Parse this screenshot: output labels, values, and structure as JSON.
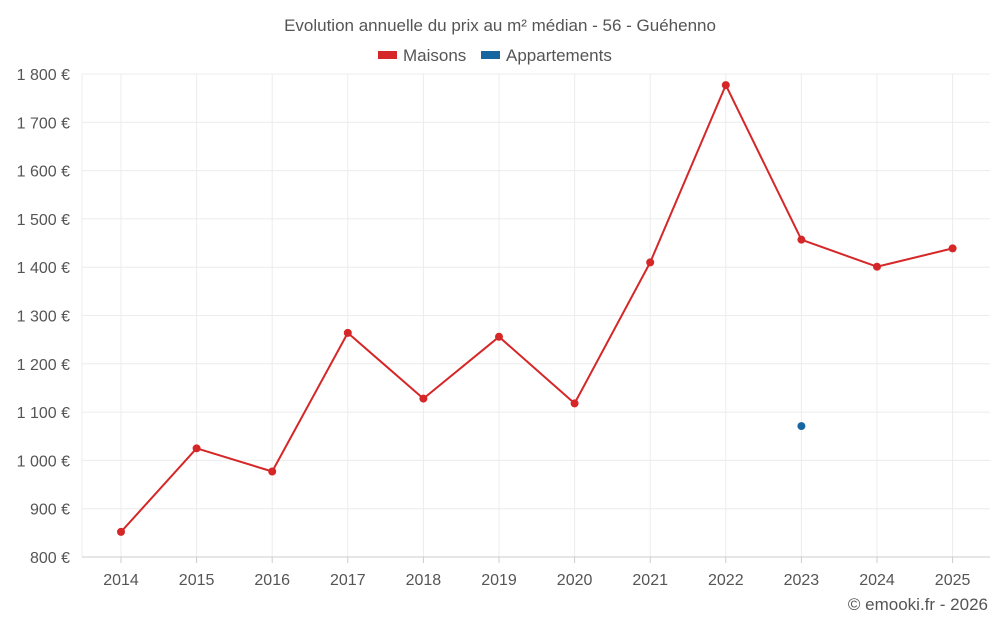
{
  "chart_data": {
    "type": "line",
    "title": "Evolution annuelle du prix au m² médian - 56 - Guéhenno",
    "x": [
      "2014",
      "2015",
      "2016",
      "2017",
      "2018",
      "2019",
      "2020",
      "2021",
      "2022",
      "2023",
      "2024",
      "2025"
    ],
    "series": [
      {
        "name": "Maisons",
        "color": "#d62728",
        "values": [
          852,
          1025,
          977,
          1264,
          1128,
          1256,
          1118,
          1410,
          1777,
          1457,
          1401,
          1439
        ]
      },
      {
        "name": "Appartements",
        "color": "#1666a0",
        "values": [
          null,
          null,
          null,
          null,
          null,
          null,
          null,
          null,
          null,
          1071,
          null,
          null
        ]
      }
    ],
    "y_ticks": [
      800,
      900,
      1000,
      1100,
      1200,
      1300,
      1400,
      1500,
      1600,
      1700,
      1800
    ],
    "y_tick_labels": [
      "800 €",
      "900 €",
      "1 000 €",
      "1 100 €",
      "1 200 €",
      "1 300 €",
      "1 400 €",
      "1 500 €",
      "1 600 €",
      "1 700 €",
      "1 800 €"
    ],
    "ylim": [
      800,
      1800
    ],
    "xlabel": "",
    "ylabel": "",
    "grid": true,
    "legend": "top-center"
  },
  "footer": {
    "credit": "© emooki.fr - 2026"
  },
  "colors": {
    "grid": "#ececec",
    "axis": "#cccccc",
    "text": "#555555"
  }
}
